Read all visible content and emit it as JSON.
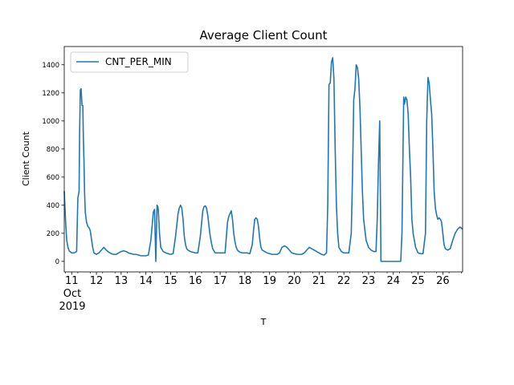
{
  "chart_data": {
    "type": "line",
    "title": "Average Client Count",
    "xlabel": "T",
    "ylabel": "Client Count",
    "x_ticks": [
      "11",
      "12",
      "13",
      "14",
      "15",
      "16",
      "17",
      "18",
      "19",
      "20",
      "21",
      "22",
      "23",
      "24",
      "25",
      "26"
    ],
    "x_tick_sub": [
      "Oct",
      "2019"
    ],
    "xlim": [
      10.7,
      26.8
    ],
    "ylim": [
      -75,
      1530
    ],
    "y_ticks": [
      0,
      200,
      400,
      600,
      800,
      1000,
      1200,
      1400
    ],
    "y_tick_labels": [
      "0",
      "200",
      "400",
      "600",
      "800",
      "1000",
      "1200",
      "1400"
    ],
    "grid": false,
    "legend_position": "upper-left",
    "series": [
      {
        "name": "CNT_PER_MIN",
        "color": "#1f77b4",
        "x": [
          10.7,
          10.75,
          10.8,
          10.85,
          10.9,
          11.0,
          11.1,
          11.2,
          11.25,
          11.3,
          11.32,
          11.35,
          11.38,
          11.42,
          11.45,
          11.47,
          11.5,
          11.52,
          11.55,
          11.6,
          11.65,
          11.7,
          11.75,
          11.8,
          11.85,
          11.9,
          11.95,
          12.0,
          12.05,
          12.1,
          12.2,
          12.3,
          12.4,
          12.5,
          12.6,
          12.7,
          12.8,
          12.9,
          13.0,
          13.1,
          13.2,
          13.3,
          13.4,
          13.5,
          13.6,
          13.7,
          13.8,
          13.9,
          14.0,
          14.1,
          14.2,
          14.3,
          14.35,
          14.4,
          14.45,
          14.48,
          14.5,
          14.52,
          14.55,
          14.6,
          14.7,
          14.8,
          14.9,
          15.0,
          15.1,
          15.2,
          15.3,
          15.35,
          15.4,
          15.45,
          15.5,
          15.55,
          15.6,
          15.65,
          15.7,
          15.8,
          15.9,
          16.0,
          16.1,
          16.2,
          16.3,
          16.35,
          16.4,
          16.45,
          16.5,
          16.55,
          16.6,
          16.65,
          16.7,
          16.8,
          16.9,
          17.0,
          17.1,
          17.2,
          17.3,
          17.35,
          17.4,
          17.45,
          17.5,
          17.55,
          17.6,
          17.65,
          17.7,
          17.8,
          17.9,
          18.0,
          18.1,
          18.2,
          18.3,
          18.35,
          18.4,
          18.45,
          18.5,
          18.55,
          18.6,
          18.65,
          18.7,
          18.8,
          18.9,
          19.0,
          19.1,
          19.2,
          19.3,
          19.4,
          19.5,
          19.6,
          19.7,
          19.8,
          19.9,
          20.0,
          20.1,
          20.2,
          20.3,
          20.4,
          20.5,
          20.6,
          20.7,
          20.8,
          20.9,
          21.0,
          21.1,
          21.2,
          21.3,
          21.35,
          21.4,
          21.45,
          21.5,
          21.55,
          21.6,
          21.65,
          21.7,
          21.75,
          21.8,
          21.9,
          22.0,
          22.1,
          22.2,
          22.3,
          22.35,
          22.4,
          22.45,
          22.5,
          22.55,
          22.6,
          22.65,
          22.7,
          22.75,
          22.8,
          22.9,
          23.0,
          23.1,
          23.2,
          23.3,
          23.35,
          23.4,
          23.45,
          23.5,
          23.55,
          23.6,
          23.7,
          23.8,
          23.9,
          24.0,
          24.1,
          24.2,
          24.3,
          24.35,
          24.4,
          24.42,
          24.45,
          24.5,
          24.55,
          24.6,
          24.65,
          24.7,
          24.75,
          24.8,
          24.9,
          25.0,
          25.1,
          25.2,
          25.3,
          25.35,
          25.4,
          25.45,
          25.5,
          25.55,
          25.6,
          25.65,
          25.7,
          25.75,
          25.8,
          25.85,
          25.9,
          25.95,
          26.0,
          26.05,
          26.1,
          26.2,
          26.3,
          26.4,
          26.5,
          26.6,
          26.7,
          26.8
        ],
        "y": [
          500,
          300,
          150,
          100,
          75,
          60,
          60,
          70,
          450,
          500,
          900,
          1220,
          1230,
          1110,
          1110,
          900,
          700,
          500,
          350,
          280,
          250,
          240,
          220,
          160,
          100,
          60,
          55,
          50,
          55,
          60,
          80,
          100,
          80,
          65,
          55,
          50,
          50,
          60,
          70,
          75,
          70,
          60,
          55,
          50,
          50,
          45,
          40,
          40,
          40,
          45,
          150,
          350,
          370,
          0,
          400,
          390,
          370,
          300,
          200,
          100,
          70,
          60,
          55,
          50,
          55,
          180,
          340,
          380,
          400,
          380,
          300,
          180,
          120,
          90,
          80,
          70,
          65,
          60,
          60,
          180,
          360,
          390,
          395,
          380,
          330,
          250,
          180,
          130,
          90,
          60,
          60,
          60,
          60,
          60,
          280,
          320,
          340,
          360,
          300,
          200,
          140,
          100,
          80,
          65,
          60,
          60,
          60,
          55,
          120,
          220,
          300,
          310,
          300,
          250,
          160,
          100,
          80,
          70,
          60,
          55,
          50,
          50,
          50,
          60,
          100,
          110,
          100,
          80,
          60,
          55,
          50,
          50,
          50,
          60,
          80,
          100,
          90,
          80,
          70,
          60,
          50,
          45,
          60,
          400,
          1260,
          1270,
          1420,
          1450,
          1300,
          800,
          400,
          200,
          100,
          70,
          60,
          60,
          60,
          200,
          600,
          1150,
          1230,
          1400,
          1380,
          1300,
          1100,
          800,
          500,
          300,
          150,
          100,
          80,
          70,
          70,
          300,
          700,
          1000,
          0,
          0,
          0,
          0,
          0,
          0,
          0,
          0,
          0,
          0,
          200,
          900,
          1170,
          1120,
          1170,
          1150,
          1050,
          800,
          600,
          300,
          200,
          100,
          60,
          55,
          55,
          200,
          1000,
          1310,
          1270,
          1150,
          1050,
          800,
          500,
          380,
          330,
          300,
          310,
          300,
          280,
          200,
          120,
          90,
          80,
          90,
          150,
          200,
          230,
          245,
          230
        ]
      }
    ]
  }
}
